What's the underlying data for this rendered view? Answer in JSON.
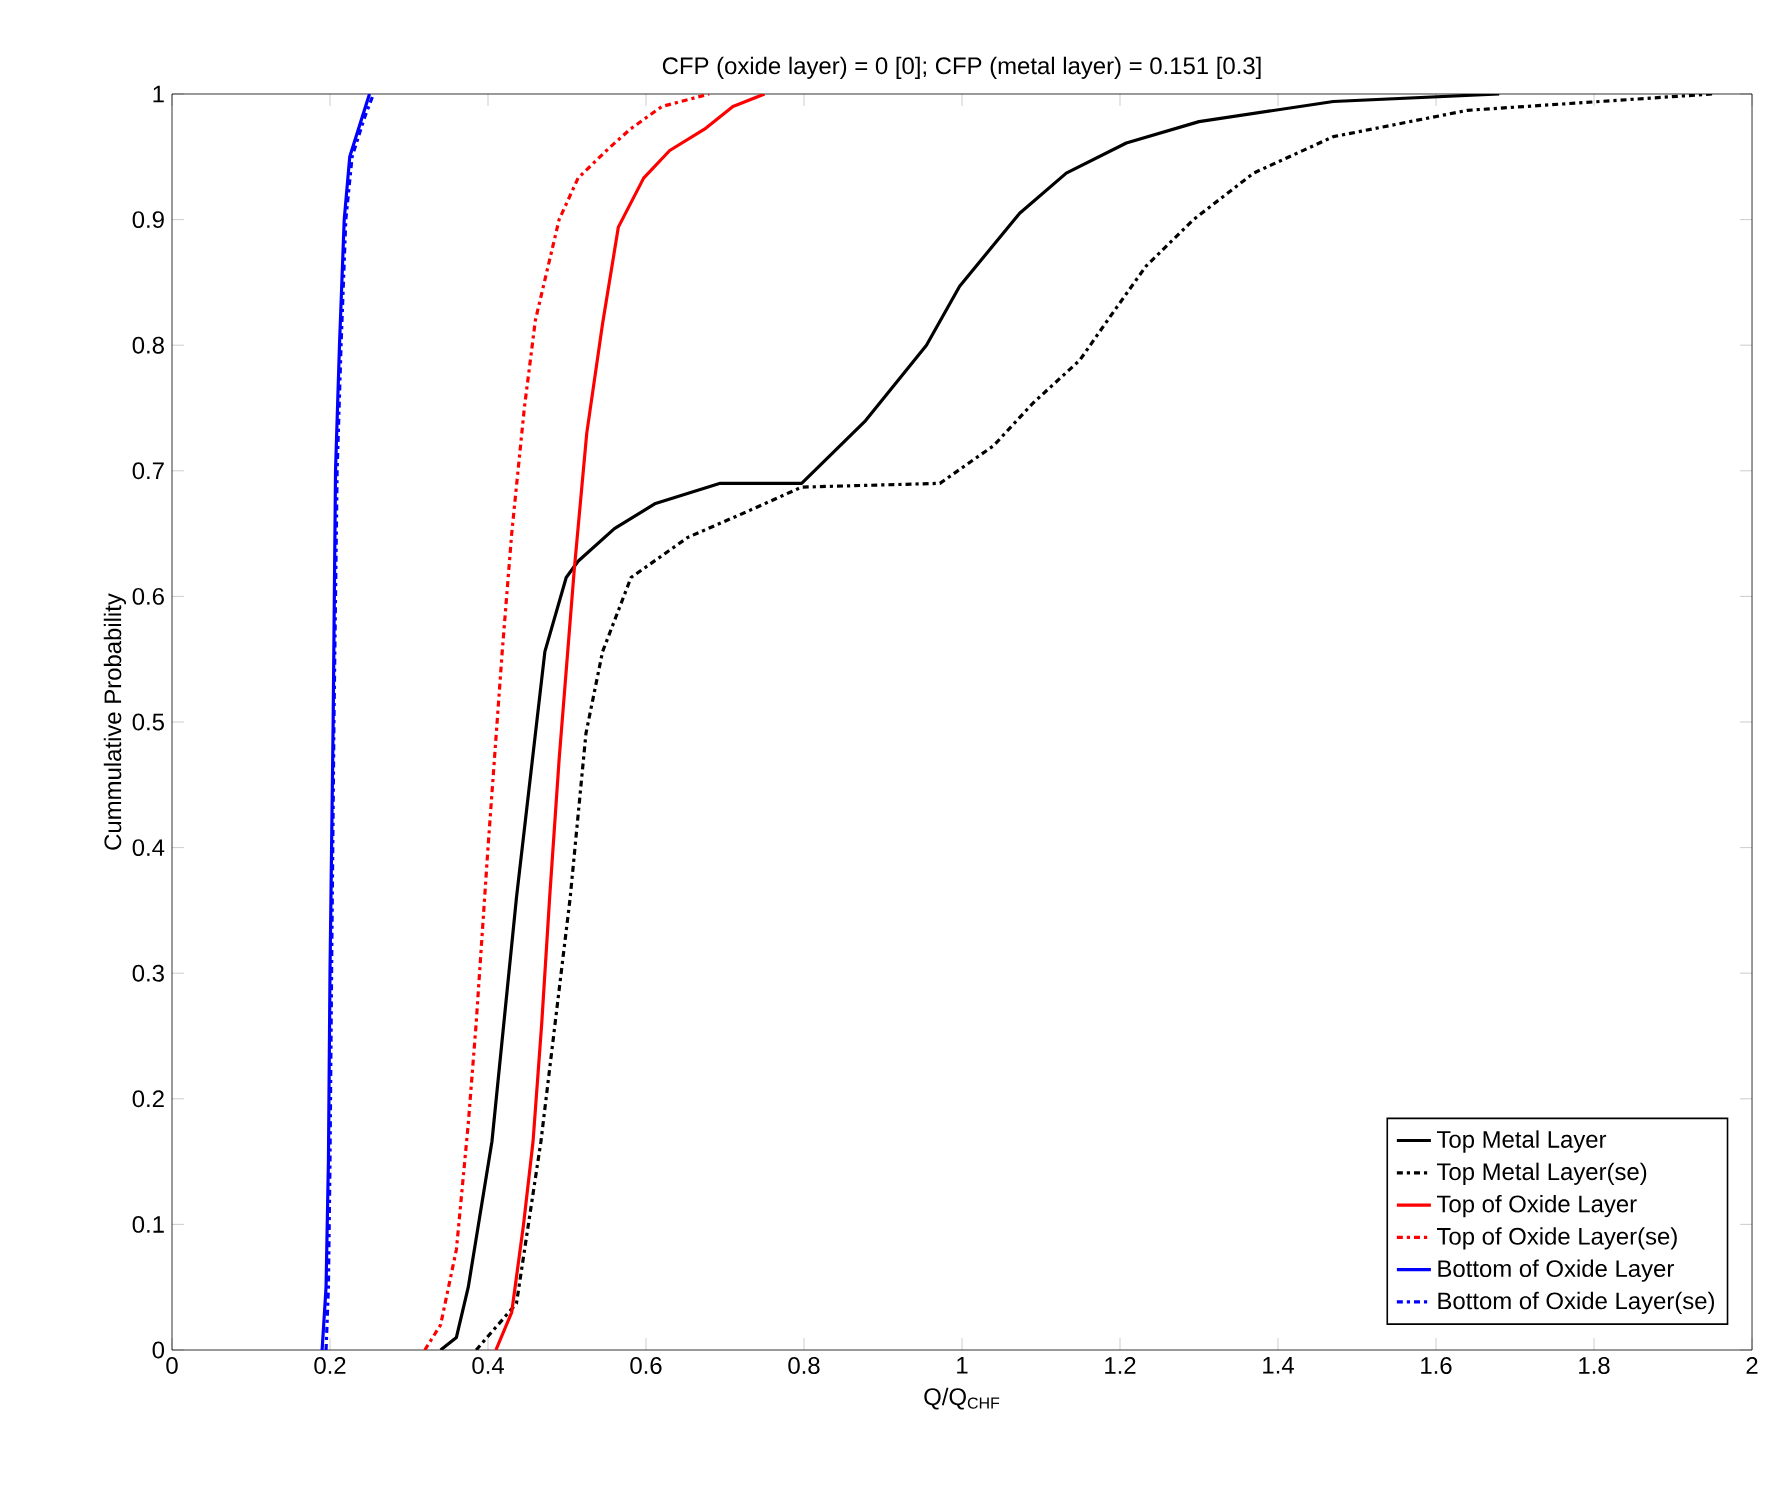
{
  "chart_data": {
    "type": "line",
    "title": "CFP (oxide layer) = 0 [0]; CFP (metal layer) = 0.151 [0.3]",
    "xlabel": "Q/Q$_{CHF}$",
    "ylabel": "Cummulative Probability",
    "xlim": [
      0,
      2
    ],
    "ylim": [
      0,
      1
    ],
    "xticks": [
      0,
      0.2,
      0.4,
      0.6,
      0.8,
      1,
      1.2,
      1.4,
      1.6,
      1.8,
      2
    ],
    "yticks": [
      0,
      0.1,
      0.2,
      0.3,
      0.4,
      0.5,
      0.6,
      0.7,
      0.8,
      0.9,
      1
    ],
    "legend": "bottom right",
    "grid": false,
    "marker": "none",
    "series": [
      {
        "name": "Top Metal Layer",
        "color": "#000000",
        "line_style": "solid",
        "x": [
          0.34,
          0.36,
          0.375,
          0.405,
          0.436,
          0.472,
          0.499,
          0.514,
          0.56,
          0.612,
          0.694,
          0.797,
          0.878,
          0.955,
          0.997,
          1.073,
          1.132,
          1.208,
          1.3,
          1.47,
          1.68
        ],
        "values": [
          0,
          0.01,
          0.05,
          0.166,
          0.36,
          0.556,
          0.615,
          0.628,
          0.654,
          0.674,
          0.69,
          0.69,
          0.74,
          0.8,
          0.847,
          0.905,
          0.937,
          0.961,
          0.978,
          0.994,
          1
        ]
      },
      {
        "name": "Top Metal Layer(se)",
        "color": "#000000",
        "line_style": "dashdot",
        "x": [
          0.385,
          0.436,
          0.467,
          0.504,
          0.524,
          0.545,
          0.581,
          0.653,
          0.726,
          0.797,
          0.972,
          1.04,
          1.09,
          1.149,
          1.19,
          1.233,
          1.293,
          1.369,
          1.47,
          1.64,
          1.95
        ],
        "values": [
          0,
          0.037,
          0.166,
          0.36,
          0.491,
          0.556,
          0.615,
          0.647,
          0.667,
          0.687,
          0.69,
          0.72,
          0.754,
          0.788,
          0.825,
          0.863,
          0.9,
          0.937,
          0.966,
          0.987,
          1
        ]
      },
      {
        "name": "Top of Oxide Layer",
        "color": "#ff0000",
        "line_style": "solid",
        "x": [
          0.41,
          0.43,
          0.445,
          0.457,
          0.468,
          0.478,
          0.49,
          0.509,
          0.525,
          0.545,
          0.565,
          0.597,
          0.63,
          0.674,
          0.71,
          0.75
        ],
        "values": [
          0,
          0.03,
          0.1,
          0.166,
          0.26,
          0.36,
          0.47,
          0.62,
          0.73,
          0.817,
          0.894,
          0.933,
          0.955,
          0.972,
          0.99,
          1
        ]
      },
      {
        "name": "Top of Oxide Layer(se)",
        "color": "#ff0000",
        "line_style": "dashdot",
        "x": [
          0.32,
          0.34,
          0.36,
          0.375,
          0.385,
          0.4,
          0.418,
          0.43,
          0.446,
          0.46,
          0.49,
          0.514,
          0.55,
          0.58,
          0.62,
          0.68
        ],
        "values": [
          0,
          0.02,
          0.08,
          0.18,
          0.26,
          0.4,
          0.556,
          0.65,
          0.75,
          0.82,
          0.9,
          0.933,
          0.955,
          0.972,
          0.99,
          1
        ]
      },
      {
        "name": "Bottom of Oxide Layer",
        "color": "#0000ff",
        "line_style": "solid",
        "x": [
          0.19,
          0.195,
          0.198,
          0.2,
          0.204,
          0.207,
          0.212,
          0.218,
          0.225,
          0.24,
          0.25
        ],
        "values": [
          0,
          0.05,
          0.15,
          0.3,
          0.5,
          0.7,
          0.8,
          0.9,
          0.95,
          0.98,
          1
        ]
      },
      {
        "name": "Bottom of Oxide Layer(se)",
        "color": "#0000ff",
        "line_style": "dashdot",
        "x": [
          0.195,
          0.198,
          0.2,
          0.202,
          0.205,
          0.209,
          0.214,
          0.22,
          0.228,
          0.243,
          0.255
        ],
        "values": [
          0,
          0.05,
          0.15,
          0.3,
          0.5,
          0.7,
          0.8,
          0.9,
          0.95,
          0.98,
          1
        ]
      }
    ]
  }
}
